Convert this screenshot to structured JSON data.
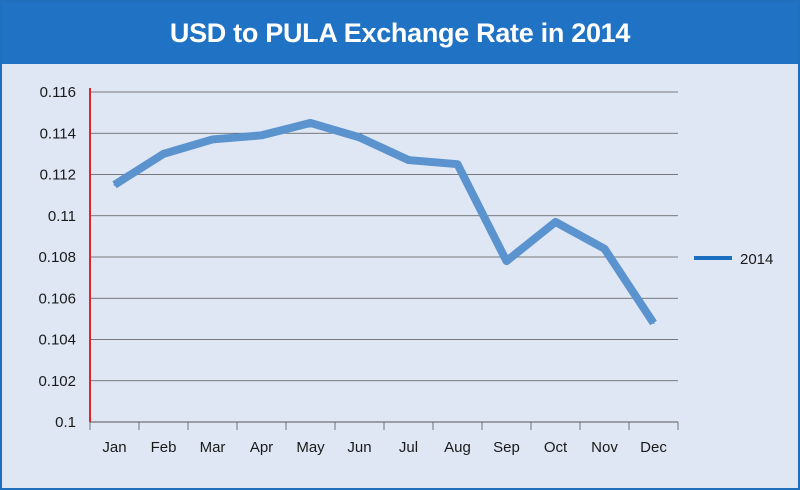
{
  "chart_data": {
    "type": "line",
    "title": "USD to PULA Exchange Rate in 2014",
    "xlabel": "",
    "ylabel": "",
    "categories": [
      "Jan",
      "Feb",
      "Mar",
      "Apr",
      "May",
      "Jun",
      "Jul",
      "Aug",
      "Sep",
      "Oct",
      "Nov",
      "Dec"
    ],
    "series": [
      {
        "name": "2014",
        "values": [
          0.1115,
          0.113,
          0.1137,
          0.1139,
          0.1145,
          0.1138,
          0.1127,
          0.1125,
          0.1078,
          0.1097,
          0.1084,
          0.1048
        ]
      }
    ],
    "yticks": [
      "0.1",
      "0.102",
      "0.104",
      "0.106",
      "0.108",
      "0.11",
      "0.112",
      "0.114",
      "0.116"
    ],
    "ylim": [
      0.1,
      0.116
    ],
    "grid": true,
    "legend_position": "right",
    "colors": {
      "line": "#5b93cf",
      "axis": "#e0262b",
      "grid": "#555555",
      "legend_line": "#1a6fc0",
      "title_bg": "#1f72c4",
      "background": "#dfe7f5"
    }
  }
}
